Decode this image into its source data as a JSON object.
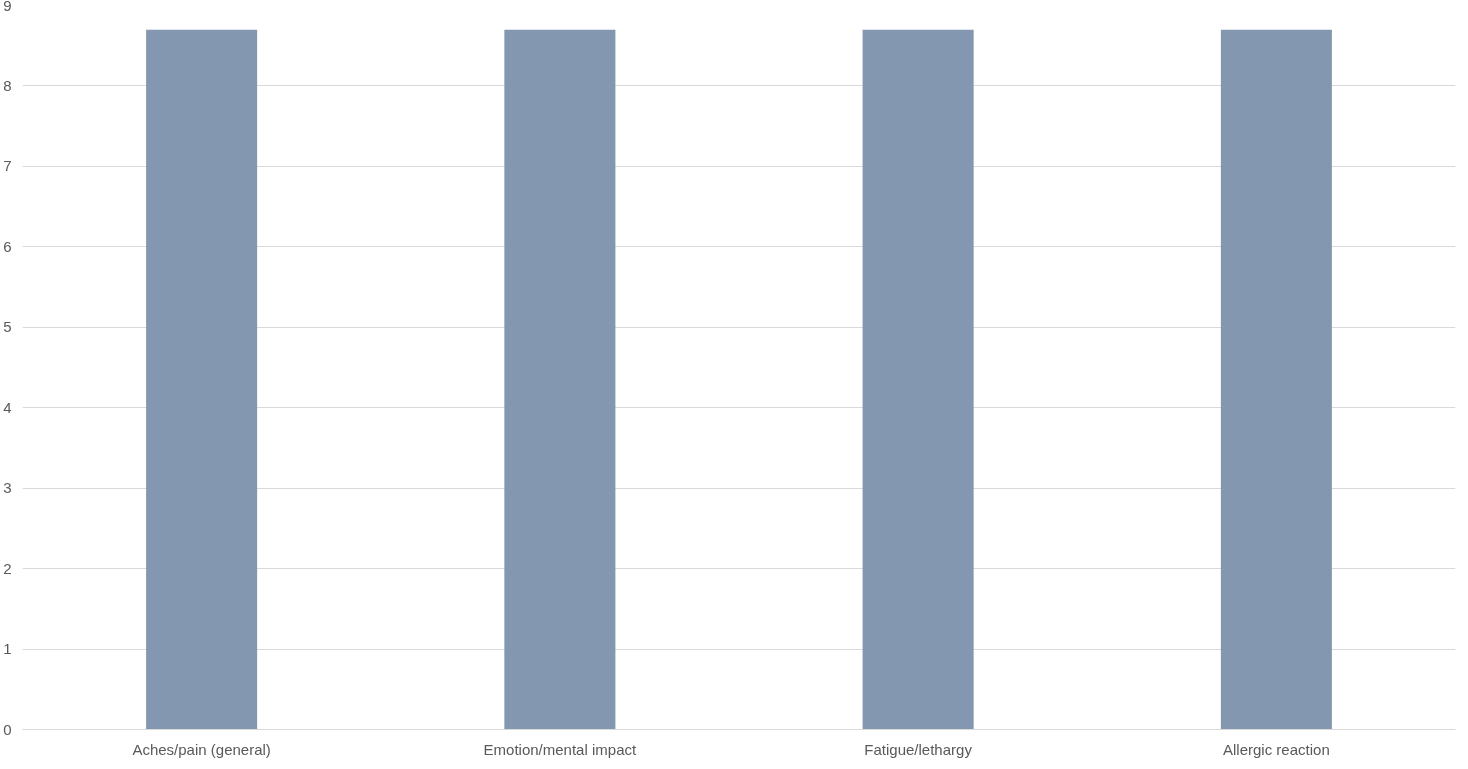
{
  "chart_data": {
    "type": "bar",
    "categories": [
      "Aches/pain (general)",
      "Emotion/mental impact",
      "Fatigue/lethargy",
      "Allergic reaction"
    ],
    "values": [
      8.7,
      8.7,
      8.7,
      8.7
    ],
    "color": "#8497b0",
    "ylim": [
      0,
      9
    ],
    "yticks": [
      0,
      1,
      2,
      3,
      4,
      5,
      6,
      7,
      8,
      9
    ],
    "grid": "y"
  }
}
